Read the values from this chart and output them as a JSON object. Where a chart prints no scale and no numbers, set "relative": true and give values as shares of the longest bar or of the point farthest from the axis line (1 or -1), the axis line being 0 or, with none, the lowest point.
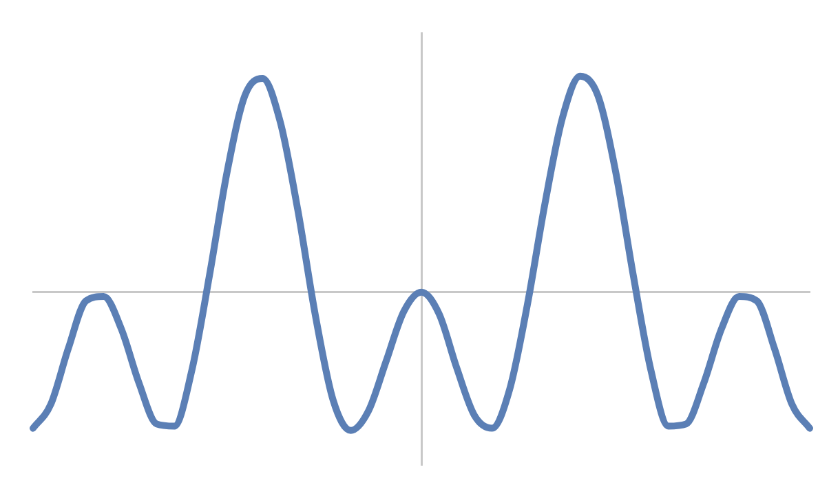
{
  "chart_data": {
    "type": "line",
    "relative": true,
    "categories": [
      null,
      null,
      null,
      null,
      null,
      null,
      null,
      null,
      null,
      null,
      null,
      null,
      null,
      null,
      null,
      null,
      null,
      null,
      null,
      null,
      null,
      null,
      null,
      null,
      null,
      null,
      null,
      null,
      null,
      null,
      null,
      null,
      null,
      null,
      null,
      null,
      null,
      null,
      null,
      null,
      null,
      null,
      null,
      null,
      null
    ],
    "series": [
      {
        "color": "#5b7fb5",
        "values": [
          -0.63,
          -0.52,
          -0.26,
          -0.04,
          -0.02,
          -0.17,
          -0.42,
          -0.61,
          -0.62,
          -0.36,
          0.08,
          0.56,
          0.91,
          0.99,
          0.79,
          0.38,
          -0.11,
          -0.5,
          -0.64,
          -0.55,
          -0.32,
          -0.09,
          0,
          -0.1,
          -0.35,
          -0.57,
          -0.63,
          -0.45,
          -0.06,
          0.41,
          0.81,
          1,
          0.91,
          0.56,
          0.08,
          -0.36,
          -0.62,
          -0.61,
          -0.42,
          -0.17,
          -0.02,
          -0.04,
          -0.26,
          -0.52,
          -0.63
        ]
      }
    ],
    "grid": false,
    "legend": false,
    "marker": "none",
    "line_style": "solid"
  }
}
